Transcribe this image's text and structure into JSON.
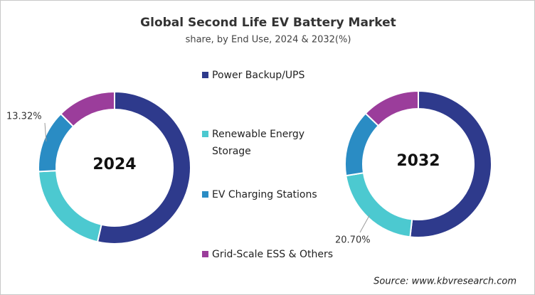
{
  "chart_data": {
    "type": "donut",
    "title": "Global Second Life EV Battery Market",
    "subtitle": "share, by End Use, 2024 & 2032(%)",
    "source": "Source: www.kbvresearch.com",
    "categories": [
      "Power Backup/UPS",
      "Renewable Energy Storage",
      "EV Charging Stations",
      "Grid-Scale ESS & Others"
    ],
    "colors": [
      "#2e3a8c",
      "#4cc9d0",
      "#2a8cc4",
      "#9b3d9b"
    ],
    "series": [
      {
        "name": "2024",
        "values": [
          53.6,
          20.6,
          13.32,
          12.48
        ],
        "value_labels": [
          null,
          null,
          "13.32%",
          null
        ]
      },
      {
        "name": "2032",
        "values": [
          51.8,
          20.7,
          14.7,
          12.8
        ],
        "value_labels": [
          null,
          "20.70%",
          null,
          null
        ]
      }
    ]
  }
}
